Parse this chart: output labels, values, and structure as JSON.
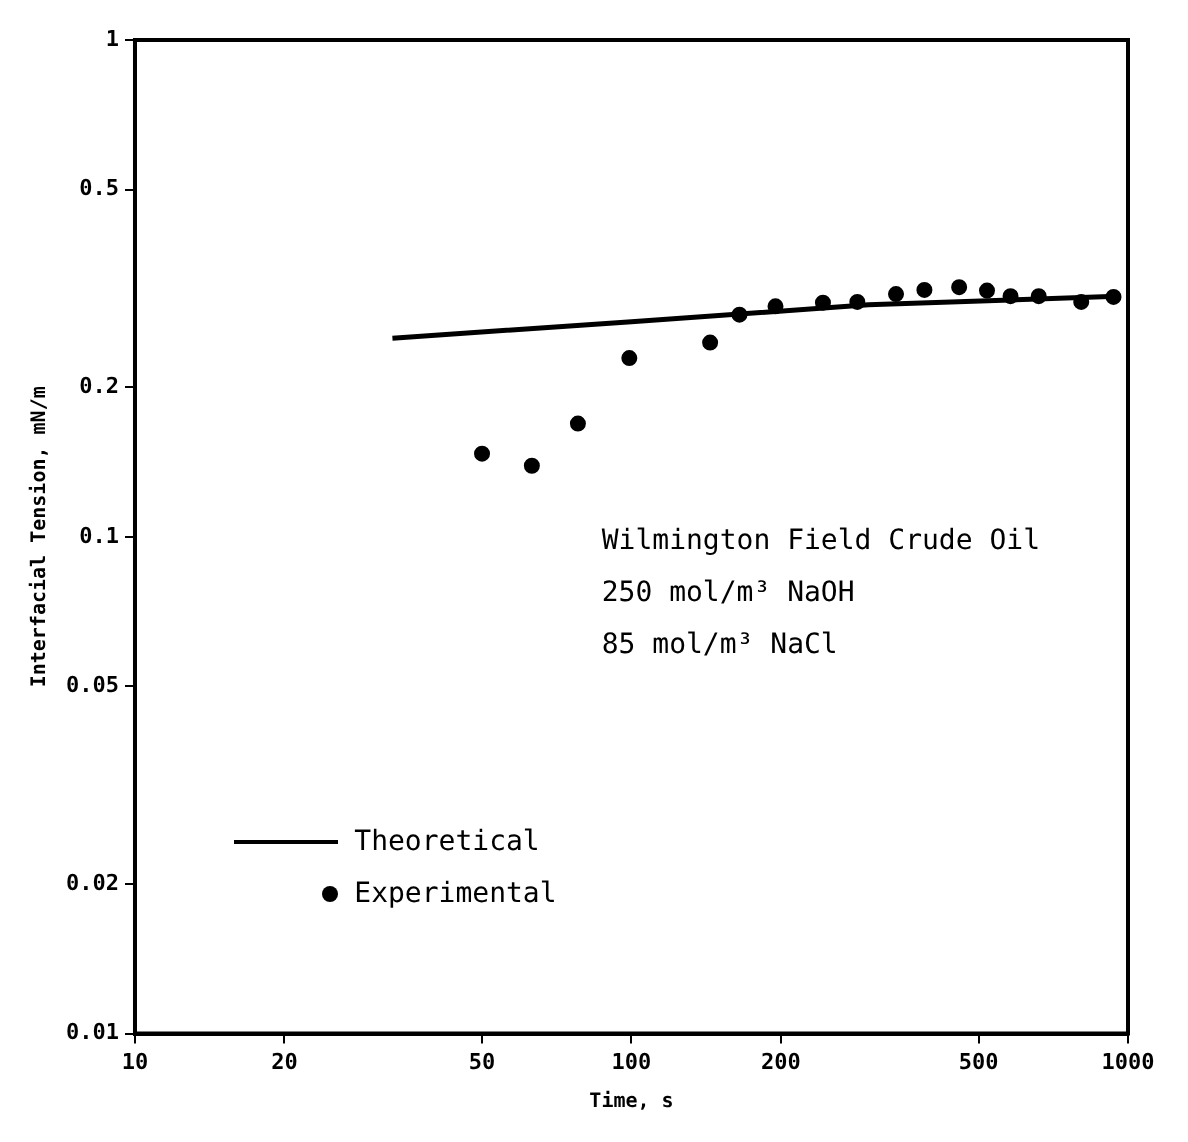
{
  "chart_data": {
    "type": "scatter",
    "xlabel": "Time, s",
    "ylabel": "Interfacial Tension, mN/m",
    "log": "xy",
    "grid": false,
    "legend": "bottom left",
    "xlim": [
      10,
      1000
    ],
    "xticks": [
      10,
      20,
      50,
      100,
      200,
      500,
      1000
    ],
    "ylim": [
      0.01,
      1
    ],
    "yticks": [
      0.01,
      0.02,
      0.05,
      0.1,
      0.2,
      0.5,
      1
    ],
    "annotations": [
      "Wilmington Field Crude Oil",
      "250 mol/m³ NaOH",
      "85 mol/m³ NaCl"
    ],
    "series": [
      {
        "name": "Theoretical",
        "type": "line",
        "marker": "none",
        "line_style": "solid",
        "color": "#000000",
        "x": [
          33,
          100,
          300,
          950
        ],
        "values": [
          0.251,
          0.271,
          0.293,
          0.305
        ]
      },
      {
        "name": "Experimental",
        "type": "scatter",
        "marker": "circle",
        "color": "#000000",
        "x": [
          50,
          63,
          78,
          99,
          144,
          165,
          195,
          243,
          285,
          341,
          389,
          457,
          520,
          580,
          661,
          805,
          935
        ],
        "values": [
          0.147,
          0.139,
          0.169,
          0.229,
          0.246,
          0.28,
          0.291,
          0.296,
          0.297,
          0.308,
          0.314,
          0.318,
          0.313,
          0.305,
          0.305,
          0.297,
          0.304
        ]
      }
    ]
  }
}
